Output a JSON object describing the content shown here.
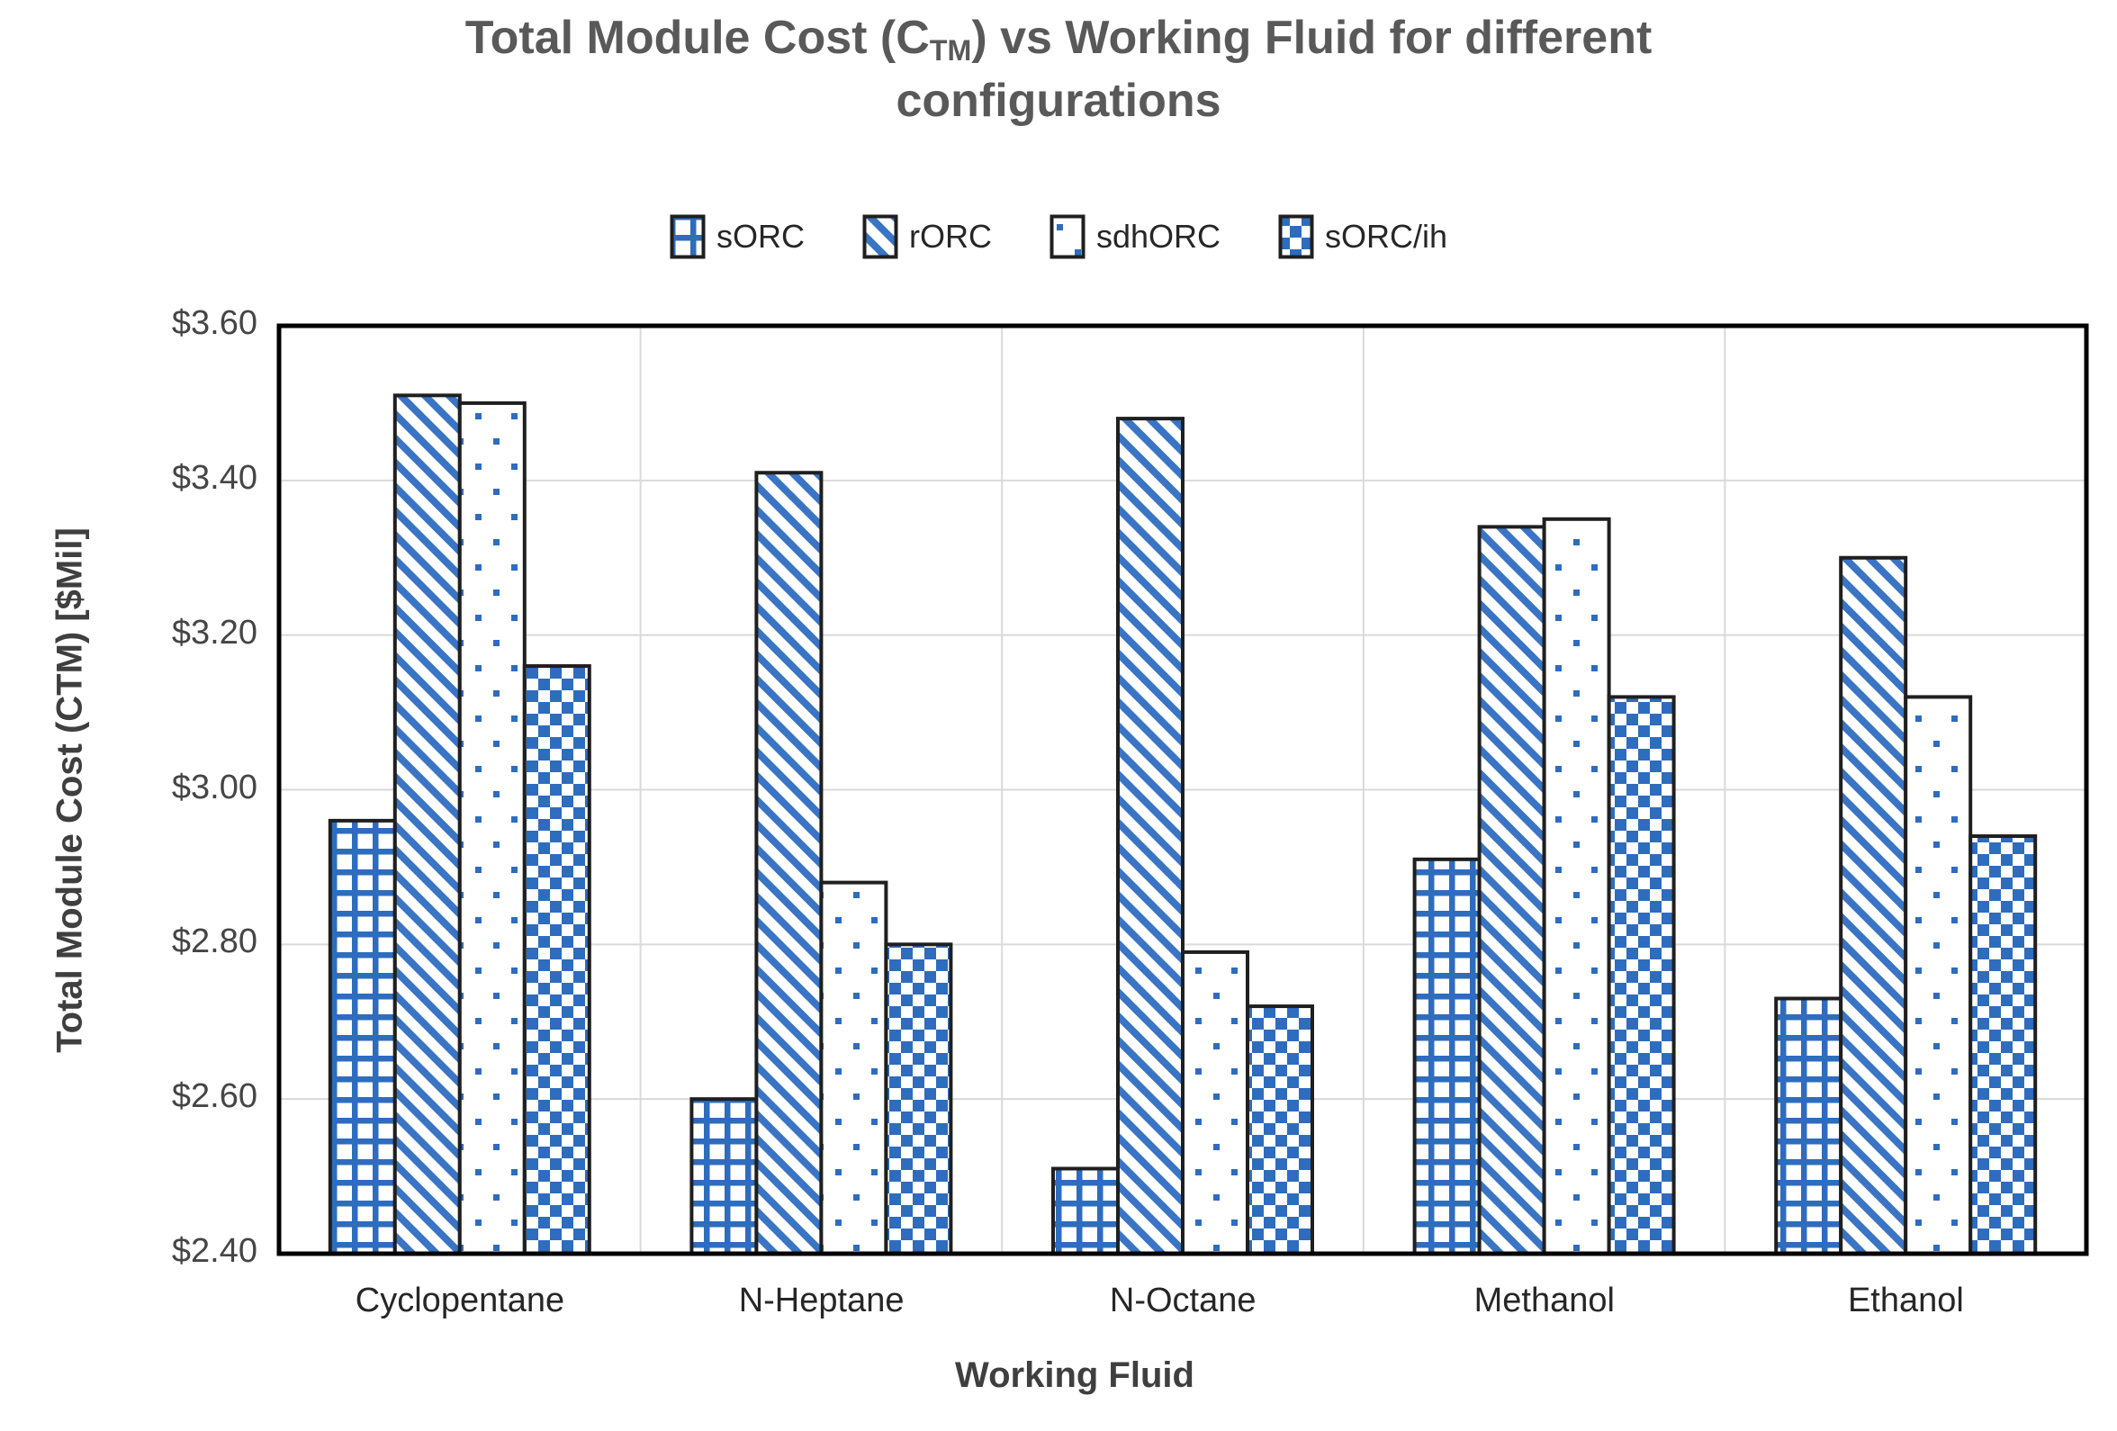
{
  "title": {
    "line1_pre": "Total Module Cost (C",
    "line1_sub": "TM",
    "line1_post": ") vs Working Fluid for different",
    "line2": "configurations"
  },
  "legend": [
    {
      "label": "sORC",
      "pattern": "grid"
    },
    {
      "label": "rORC",
      "pattern": "diag"
    },
    {
      "label": "sdhORC",
      "pattern": "dots"
    },
    {
      "label": "sORC/ih",
      "pattern": "check"
    }
  ],
  "chart_data": {
    "type": "bar",
    "categories": [
      "Cyclopentane",
      "N-Heptane",
      "N-Octane",
      "Methanol",
      "Ethanol"
    ],
    "series": [
      {
        "name": "sORC",
        "pattern": "grid",
        "values": [
          2.96,
          2.6,
          2.51,
          2.91,
          2.73
        ]
      },
      {
        "name": "rORC",
        "pattern": "diag",
        "values": [
          3.51,
          3.41,
          3.48,
          3.34,
          3.3
        ]
      },
      {
        "name": "sdhORC",
        "pattern": "dots",
        "values": [
          3.5,
          2.88,
          2.79,
          3.35,
          3.12
        ]
      },
      {
        "name": "sORC/ih",
        "pattern": "check",
        "values": [
          3.16,
          2.8,
          2.72,
          3.12,
          2.94
        ]
      }
    ],
    "title": "Total Module Cost (CTM) vs Working Fluid for different configurations",
    "xlabel": "Working Fluid",
    "ylabel": "Total Module Cost (CTM) [$Mil]",
    "ylim": [
      2.4,
      3.6
    ],
    "ytick_step": 0.2,
    "yticks": [
      "$2.40",
      "$2.60",
      "$2.80",
      "$3.00",
      "$3.20",
      "$3.40",
      "$3.60"
    ],
    "grid": true,
    "legend_position": "top"
  },
  "colors": {
    "bar_blue": "#2e6cbe",
    "bar_outline": "#1f1f1f",
    "plot_border": "#000000",
    "gridline": "#d9d9d9",
    "title_text": "#595959",
    "tick_text": "#454545",
    "category_text": "#262626"
  }
}
